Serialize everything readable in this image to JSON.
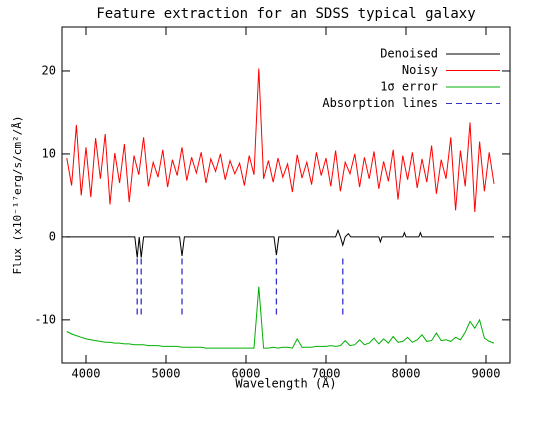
{
  "chart_data": {
    "type": "line",
    "title": "Feature extraction for an SDSS typical galaxy",
    "x_label": "Wavelength (Å)",
    "y_label": "Flux (x10⁻¹⁷erg/s/cm²/Å)",
    "xlim": [
      3700,
      9300
    ],
    "ylim": [
      -15.2,
      25.3
    ],
    "xticks": [
      4000,
      5000,
      6000,
      7000,
      8000,
      9000
    ],
    "yticks": [
      -10,
      0,
      10,
      20
    ],
    "x": [
      3760,
      3820,
      3880,
      3940,
      4000,
      4060,
      4120,
      4180,
      4240,
      4300,
      4360,
      4420,
      4480,
      4540,
      4600,
      4660,
      4720,
      4780,
      4840,
      4900,
      4960,
      5020,
      5080,
      5140,
      5200,
      5260,
      5320,
      5380,
      5440,
      5500,
      5560,
      5620,
      5680,
      5740,
      5800,
      5860,
      5920,
      5980,
      6040,
      6100,
      6160,
      6220,
      6280,
      6340,
      6400,
      6460,
      6520,
      6580,
      6640,
      6700,
      6760,
      6820,
      6880,
      6940,
      7000,
      7060,
      7120,
      7180,
      7240,
      7300,
      7360,
      7420,
      7480,
      7540,
      7600,
      7660,
      7720,
      7780,
      7840,
      7900,
      7960,
      8020,
      8080,
      8140,
      8200,
      8260,
      8320,
      8380,
      8440,
      8500,
      8560,
      8620,
      8680,
      8740,
      8800,
      8860,
      8920,
      8980,
      9040,
      9100
    ],
    "series": [
      {
        "name": "Noisy",
        "color": "#ff0000",
        "values": [
          9.5,
          6.2,
          13.5,
          5.0,
          10.8,
          4.8,
          11.9,
          7.0,
          12.4,
          3.9,
          10.1,
          6.5,
          11.2,
          4.2,
          9.8,
          7.5,
          12.0,
          6.1,
          9.0,
          7.2,
          10.5,
          6.0,
          9.3,
          7.4,
          10.8,
          6.8,
          9.6,
          7.7,
          10.2,
          6.5,
          9.4,
          7.9,
          10.0,
          6.9,
          9.2,
          7.6,
          8.9,
          6.2,
          9.8,
          7.5,
          20.3,
          7.0,
          9.2,
          6.6,
          9.5,
          7.2,
          8.8,
          5.4,
          9.9,
          7.1,
          9.0,
          6.3,
          10.2,
          7.4,
          9.5,
          6.1,
          10.4,
          5.5,
          9.0,
          7.6,
          10.0,
          6.0,
          9.6,
          7.0,
          10.3,
          5.8,
          9.1,
          6.7,
          10.5,
          4.5,
          9.8,
          6.9,
          10.2,
          5.9,
          9.4,
          6.6,
          11.0,
          5.2,
          9.3,
          7.0,
          12.0,
          3.2,
          10.4,
          6.1,
          13.8,
          3.0,
          11.5,
          5.5,
          10.2,
          6.4
        ]
      },
      {
        "name": "1σ error",
        "color": "#00b000",
        "values": [
          -11.4,
          -11.7,
          -11.9,
          -12.1,
          -12.3,
          -12.4,
          -12.5,
          -12.6,
          -12.7,
          -12.7,
          -12.8,
          -12.8,
          -12.9,
          -12.9,
          -13.0,
          -13.0,
          -13.0,
          -13.1,
          -13.1,
          -13.1,
          -13.2,
          -13.2,
          -13.2,
          -13.2,
          -13.3,
          -13.3,
          -13.3,
          -13.3,
          -13.3,
          -13.4,
          -13.4,
          -13.4,
          -13.4,
          -13.4,
          -13.4,
          -13.4,
          -13.4,
          -13.4,
          -13.4,
          -13.4,
          -6.0,
          -13.4,
          -13.4,
          -13.3,
          -13.4,
          -13.3,
          -13.3,
          -13.4,
          -12.3,
          -13.3,
          -13.3,
          -13.3,
          -13.2,
          -13.2,
          -13.2,
          -13.1,
          -13.2,
          -13.1,
          -12.5,
          -13.1,
          -13.0,
          -12.4,
          -13.0,
          -12.8,
          -12.2,
          -12.9,
          -12.3,
          -12.8,
          -12.0,
          -12.7,
          -12.6,
          -12.1,
          -12.7,
          -12.4,
          -11.8,
          -12.6,
          -12.5,
          -11.6,
          -12.5,
          -12.4,
          -12.6,
          -12.1,
          -12.4,
          -11.5,
          -10.2,
          -11.0,
          -10.0,
          -12.2,
          -12.6,
          -12.8
        ]
      },
      {
        "name": "Denoised",
        "color": "#000000",
        "x": [
          3760,
          4610,
          4640,
          4665,
          4690,
          4720,
          5170,
          5200,
          5230,
          6350,
          6380,
          6410,
          7120,
          7150,
          7180,
          7210,
          7240,
          7280,
          7310,
          7340,
          7660,
          7680,
          7700,
          7960,
          7980,
          8000,
          8160,
          8180,
          8200,
          9100
        ],
        "values": [
          0,
          0,
          -2.5,
          0,
          -2.5,
          0,
          0,
          -2.3,
          0,
          0,
          -2.2,
          0,
          0,
          0.8,
          0,
          -1.0,
          0,
          0.4,
          0,
          0,
          0,
          -0.6,
          0,
          0,
          0.5,
          0,
          0,
          0.5,
          0,
          0
        ]
      }
    ],
    "absorption_lines": {
      "name": "Absorption lines",
      "color": "#3333cc",
      "x": [
        4640,
        4690,
        5200,
        6380,
        7210
      ],
      "y_start": -2.6,
      "y_end": -9.6
    },
    "legend_position": "upper right"
  }
}
